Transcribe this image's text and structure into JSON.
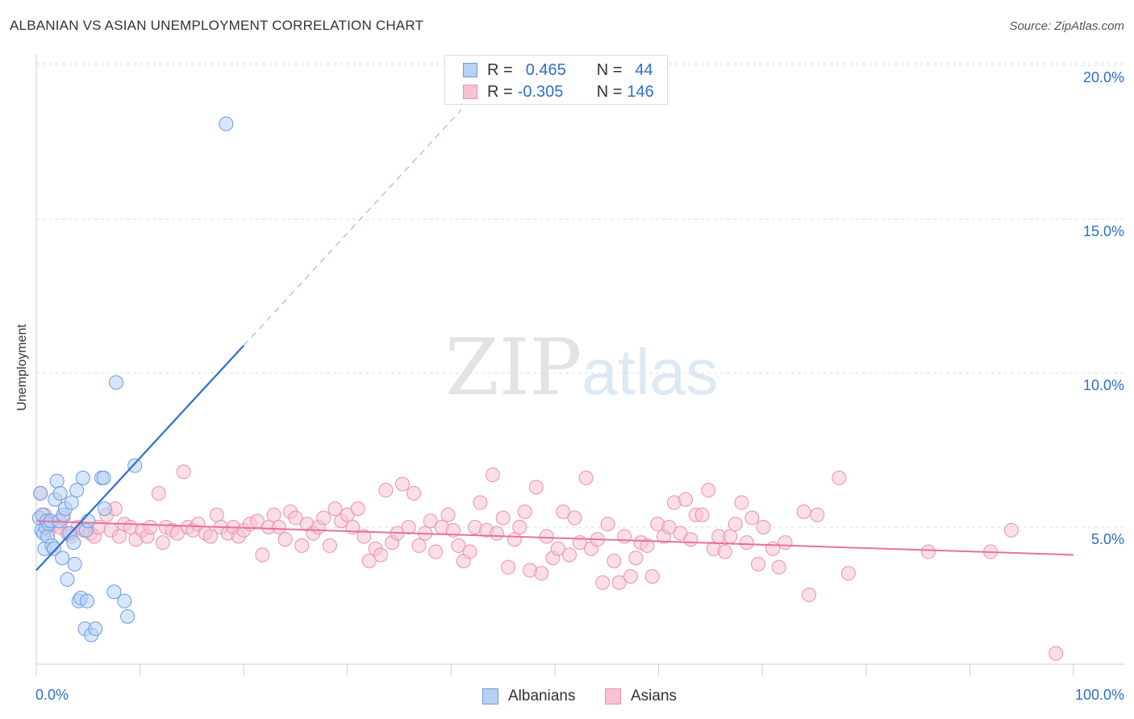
{
  "title": "ALBANIAN VS ASIAN UNEMPLOYMENT CORRELATION CHART",
  "source": "Source: ZipAtlas.com",
  "watermark": {
    "zip": "ZIP",
    "atlas": "atlas"
  },
  "legend": {
    "rows": [
      {
        "r_label": "R =",
        "r_value": "0.465",
        "n_label": "N =",
        "n_value": "44"
      },
      {
        "r_label": "R =",
        "r_value": "-0.305",
        "n_label": "N =",
        "n_value": "146"
      }
    ]
  },
  "bottom_legend": [
    "Albanians",
    "Asians"
  ],
  "colors": {
    "albanian_fill": "#b7d1f5",
    "albanian_stroke": "#6a9be0",
    "albanian_line": "#2d6fd0",
    "asian_fill": "#f8c2d4",
    "asian_stroke": "#e990b0",
    "asian_line": "#e8709a",
    "axis_label": "#2d6fc9",
    "grid": "#dddddd"
  },
  "chart_data": {
    "type": "scatter",
    "ylabel": "Unemployment",
    "xlim": [
      0,
      100
    ],
    "ylim": [
      0,
      20.5
    ],
    "x_tick_labels": [
      "0.0%",
      "100.0%"
    ],
    "y_ticks": [
      5,
      10,
      15,
      20
    ],
    "y_tick_labels": [
      "5.0%",
      "10.0%",
      "15.0%",
      "20.0%"
    ],
    "grid": "horizontal dashed",
    "legend_position": "top-center",
    "series": [
      {
        "name": "Albanians",
        "r": 0.465,
        "n": 44,
        "trend": {
          "x0": 0,
          "y0": 3.6,
          "x1": 20,
          "y1": 10.9,
          "dashed_to_x": 41
        },
        "points": [
          [
            0.3,
            5.3
          ],
          [
            0.4,
            6.1
          ],
          [
            0.5,
            4.9
          ],
          [
            0.6,
            5.4
          ],
          [
            0.7,
            4.8
          ],
          [
            0.8,
            4.3
          ],
          [
            0.9,
            5.0
          ],
          [
            1.0,
            5.2
          ],
          [
            1.1,
            4.7
          ],
          [
            1.2,
            5.1
          ],
          [
            1.4,
            5.2
          ],
          [
            1.5,
            4.4
          ],
          [
            1.7,
            4.3
          ],
          [
            1.8,
            5.9
          ],
          [
            2.0,
            6.5
          ],
          [
            2.2,
            5.2
          ],
          [
            2.3,
            6.1
          ],
          [
            2.5,
            4.0
          ],
          [
            2.6,
            5.4
          ],
          [
            2.8,
            5.6
          ],
          [
            3.0,
            3.3
          ],
          [
            3.2,
            4.8
          ],
          [
            3.4,
            5.8
          ],
          [
            3.6,
            4.5
          ],
          [
            3.7,
            3.8
          ],
          [
            3.9,
            6.2
          ],
          [
            4.1,
            2.6
          ],
          [
            4.3,
            2.7
          ],
          [
            4.5,
            6.6
          ],
          [
            4.7,
            1.7
          ],
          [
            4.8,
            4.9
          ],
          [
            4.9,
            2.6
          ],
          [
            5.0,
            5.2
          ],
          [
            5.3,
            1.5
          ],
          [
            5.7,
            1.7
          ],
          [
            6.3,
            6.6
          ],
          [
            6.5,
            6.6
          ],
          [
            6.6,
            5.6
          ],
          [
            7.5,
            2.9
          ],
          [
            7.7,
            9.7
          ],
          [
            8.5,
            2.6
          ],
          [
            8.8,
            2.1
          ],
          [
            9.5,
            7.0
          ],
          [
            18.3,
            18.1
          ]
        ]
      },
      {
        "name": "Asians",
        "r": -0.305,
        "n": 146,
        "trend": {
          "x0": 0,
          "y0": 5.2,
          "x1": 100,
          "y1": 4.1
        },
        "points": [
          [
            0.4,
            6.1
          ],
          [
            0.8,
            5.4
          ],
          [
            1.2,
            4.9
          ],
          [
            1.8,
            5.1
          ],
          [
            2.3,
            5.0
          ],
          [
            2.6,
            5.3
          ],
          [
            3.0,
            4.8
          ],
          [
            3.4,
            4.7
          ],
          [
            4.0,
            5.0
          ],
          [
            4.6,
            4.9
          ],
          [
            5.2,
            4.8
          ],
          [
            5.6,
            4.7
          ],
          [
            6.0,
            5.0
          ],
          [
            6.8,
            5.4
          ],
          [
            7.2,
            4.9
          ],
          [
            7.6,
            5.6
          ],
          [
            8.0,
            4.7
          ],
          [
            8.5,
            5.1
          ],
          [
            9.1,
            5.0
          ],
          [
            9.6,
            4.6
          ],
          [
            10.2,
            4.9
          ],
          [
            10.7,
            4.7
          ],
          [
            11.0,
            5.0
          ],
          [
            11.8,
            6.1
          ],
          [
            12.2,
            4.5
          ],
          [
            12.5,
            5.0
          ],
          [
            13.1,
            4.9
          ],
          [
            13.6,
            4.8
          ],
          [
            14.2,
            6.8
          ],
          [
            14.6,
            5.0
          ],
          [
            15.1,
            4.9
          ],
          [
            15.6,
            5.1
          ],
          [
            16.3,
            4.8
          ],
          [
            16.8,
            4.7
          ],
          [
            17.4,
            5.4
          ],
          [
            17.8,
            5.0
          ],
          [
            18.5,
            4.8
          ],
          [
            19.0,
            5.0
          ],
          [
            19.5,
            4.7
          ],
          [
            20.0,
            4.9
          ],
          [
            20.6,
            5.1
          ],
          [
            21.3,
            5.2
          ],
          [
            21.8,
            4.1
          ],
          [
            22.4,
            5.0
          ],
          [
            22.9,
            5.4
          ],
          [
            23.4,
            5.0
          ],
          [
            24.0,
            4.6
          ],
          [
            24.5,
            5.5
          ],
          [
            25.0,
            5.3
          ],
          [
            25.6,
            4.4
          ],
          [
            26.1,
            5.1
          ],
          [
            26.7,
            4.8
          ],
          [
            27.2,
            5.0
          ],
          [
            27.7,
            5.3
          ],
          [
            28.3,
            4.4
          ],
          [
            28.8,
            5.6
          ],
          [
            29.4,
            5.2
          ],
          [
            30.0,
            5.4
          ],
          [
            30.5,
            5.0
          ],
          [
            31.0,
            5.6
          ],
          [
            31.6,
            4.7
          ],
          [
            32.1,
            3.9
          ],
          [
            32.7,
            4.3
          ],
          [
            33.2,
            4.1
          ],
          [
            33.7,
            6.2
          ],
          [
            34.3,
            4.5
          ],
          [
            34.8,
            4.8
          ],
          [
            35.3,
            6.4
          ],
          [
            35.9,
            5.0
          ],
          [
            36.4,
            6.1
          ],
          [
            36.9,
            4.4
          ],
          [
            37.5,
            4.8
          ],
          [
            38.0,
            5.2
          ],
          [
            38.5,
            4.2
          ],
          [
            39.1,
            5.0
          ],
          [
            39.7,
            5.4
          ],
          [
            40.2,
            4.9
          ],
          [
            40.7,
            4.4
          ],
          [
            41.2,
            3.9
          ],
          [
            41.8,
            4.2
          ],
          [
            42.3,
            5.0
          ],
          [
            42.8,
            5.8
          ],
          [
            43.4,
            4.9
          ],
          [
            44.0,
            6.7
          ],
          [
            44.4,
            4.8
          ],
          [
            45.0,
            5.3
          ],
          [
            45.5,
            3.7
          ],
          [
            46.1,
            4.6
          ],
          [
            46.6,
            5.0
          ],
          [
            47.1,
            5.5
          ],
          [
            47.6,
            3.6
          ],
          [
            48.2,
            6.3
          ],
          [
            48.7,
            3.5
          ],
          [
            49.2,
            4.7
          ],
          [
            49.8,
            4.0
          ],
          [
            50.3,
            4.3
          ],
          [
            50.8,
            5.5
          ],
          [
            51.4,
            4.1
          ],
          [
            51.9,
            5.3
          ],
          [
            52.4,
            4.5
          ],
          [
            53.0,
            6.6
          ],
          [
            53.5,
            4.3
          ],
          [
            54.1,
            4.6
          ],
          [
            54.6,
            3.2
          ],
          [
            55.1,
            5.1
          ],
          [
            55.7,
            3.9
          ],
          [
            56.2,
            3.2
          ],
          [
            56.7,
            4.7
          ],
          [
            57.3,
            3.4
          ],
          [
            57.8,
            4.0
          ],
          [
            58.3,
            4.5
          ],
          [
            58.9,
            4.4
          ],
          [
            59.4,
            3.4
          ],
          [
            59.9,
            5.1
          ],
          [
            60.5,
            4.7
          ],
          [
            61.0,
            5.0
          ],
          [
            61.5,
            5.8
          ],
          [
            62.1,
            4.8
          ],
          [
            62.6,
            5.9
          ],
          [
            63.1,
            4.6
          ],
          [
            63.6,
            5.4
          ],
          [
            64.2,
            5.4
          ],
          [
            64.8,
            6.2
          ],
          [
            65.3,
            4.3
          ],
          [
            65.8,
            4.7
          ],
          [
            66.4,
            4.2
          ],
          [
            66.9,
            4.7
          ],
          [
            67.4,
            5.1
          ],
          [
            68.0,
            5.8
          ],
          [
            68.5,
            4.5
          ],
          [
            69.0,
            5.3
          ],
          [
            69.6,
            3.8
          ],
          [
            70.1,
            5.0
          ],
          [
            71.0,
            4.3
          ],
          [
            71.6,
            3.7
          ],
          [
            72.2,
            4.5
          ],
          [
            74.0,
            5.5
          ],
          [
            74.5,
            2.8
          ],
          [
            75.3,
            5.4
          ],
          [
            77.4,
            6.6
          ],
          [
            78.3,
            3.5
          ],
          [
            86.0,
            4.2
          ],
          [
            92.0,
            4.2
          ],
          [
            94.0,
            4.9
          ],
          [
            98.3,
            0.9
          ]
        ]
      }
    ]
  }
}
